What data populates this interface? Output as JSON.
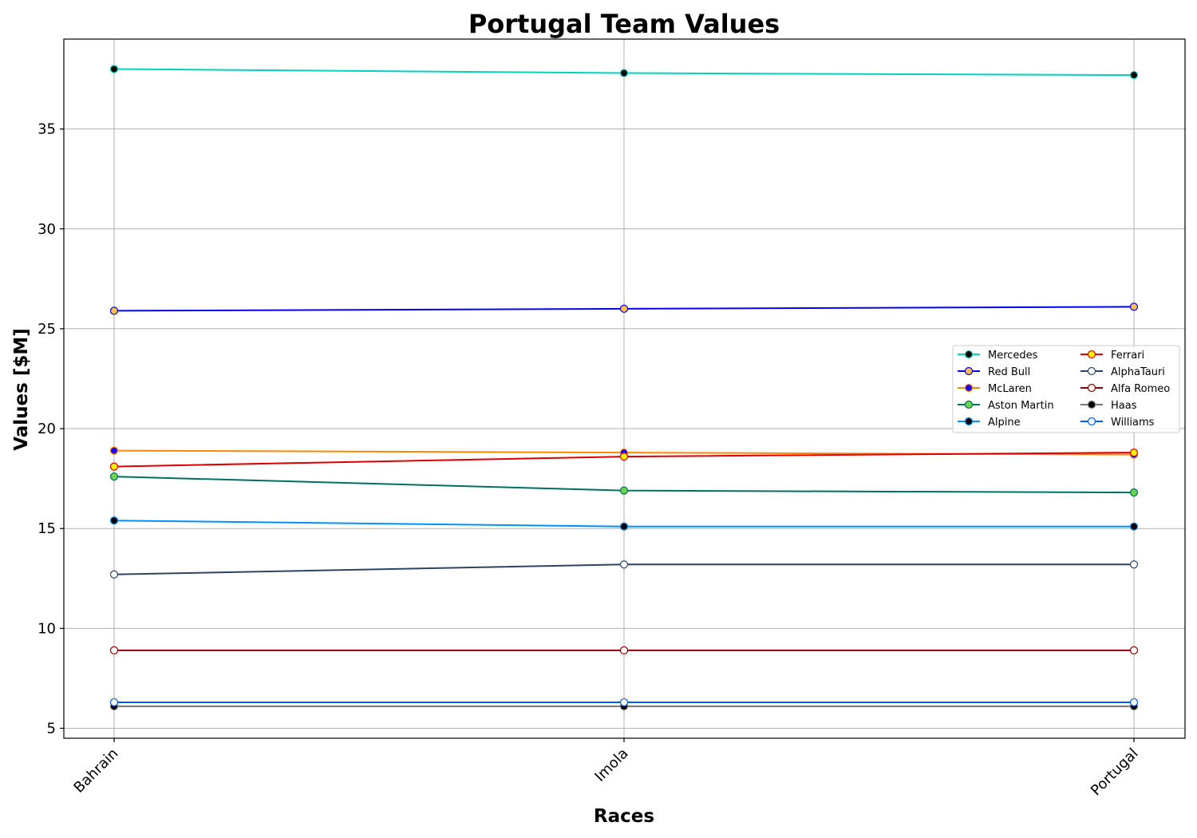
{
  "chart_data": {
    "type": "line",
    "title": "Portugal Team Values",
    "xlabel": "Races",
    "ylabel": "Values [$M]",
    "categories": [
      "Bahrain",
      "Imola",
      "Portugal"
    ],
    "ylim": [
      4.5,
      39.5
    ],
    "yticks": [
      5,
      10,
      15,
      20,
      25,
      30,
      35
    ],
    "grid": true,
    "legend_position": "center-right",
    "legend_columns": 2,
    "series": [
      {
        "name": "Mercedes",
        "values": [
          38.0,
          37.8,
          37.7
        ],
        "color": "#00d2be",
        "marker_fill": "#000000",
        "marker_edge": "#00d2be"
      },
      {
        "name": "Red Bull",
        "values": [
          25.9,
          26.0,
          26.1
        ],
        "color": "#0600ef",
        "marker_fill": "#fcbf49",
        "marker_edge": "#0600ef"
      },
      {
        "name": "McLaren",
        "values": [
          18.9,
          18.8,
          18.7
        ],
        "color": "#ff8700",
        "marker_fill": "#1e00ff",
        "marker_edge": "#ff8700"
      },
      {
        "name": "Aston Martin",
        "values": [
          17.6,
          16.9,
          16.8
        ],
        "color": "#006f62",
        "marker_fill": "#6cd34b",
        "marker_edge": "#006f62"
      },
      {
        "name": "Alpine",
        "values": [
          15.4,
          15.1,
          15.1
        ],
        "color": "#0090ff",
        "marker_fill": "#000000",
        "marker_edge": "#0090ff"
      },
      {
        "name": "Ferrari",
        "values": [
          18.1,
          18.6,
          18.8
        ],
        "color": "#dc0000",
        "marker_fill": "#fff200",
        "marker_edge": "#dc0000"
      },
      {
        "name": "AlphaTauri",
        "values": [
          12.7,
          13.2,
          13.2
        ],
        "color": "#2b4562",
        "marker_fill": "#ffffff",
        "marker_edge": "#2b4562"
      },
      {
        "name": "Alfa Romeo",
        "values": [
          8.9,
          8.9,
          8.9
        ],
        "color": "#900000",
        "marker_fill": "#ffffff",
        "marker_edge": "#900000"
      },
      {
        "name": "Haas",
        "values": [
          6.1,
          6.1,
          6.1
        ],
        "color": "#787878",
        "marker_fill": "#000000",
        "marker_edge": "#787878"
      },
      {
        "name": "Williams",
        "values": [
          6.3,
          6.3,
          6.3
        ],
        "color": "#005aff",
        "marker_fill": "#ffffff",
        "marker_edge": "#005aff"
      }
    ]
  }
}
